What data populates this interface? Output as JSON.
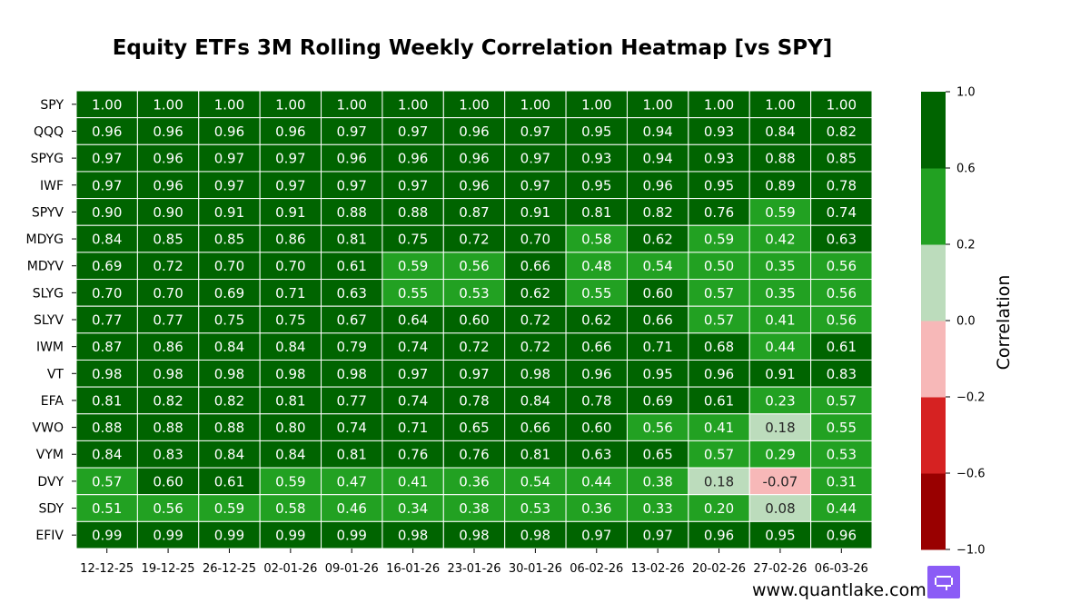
{
  "chart_data": {
    "type": "heatmap",
    "title": "Equity ETFs 3M Rolling Weekly Correlation Heatmap [vs SPY]",
    "rows": [
      "SPY",
      "QQQ",
      "SPYG",
      "IWF",
      "SPYV",
      "MDYG",
      "MDYV",
      "SLYG",
      "SLYV",
      "IWM",
      "VT",
      "EFA",
      "VWO",
      "VYM",
      "DVY",
      "SDY",
      "EFIV"
    ],
    "columns": [
      "12-12-25",
      "19-12-25",
      "26-12-25",
      "02-01-26",
      "09-01-26",
      "16-01-26",
      "23-01-26",
      "30-01-26",
      "06-02-26",
      "13-02-26",
      "20-02-26",
      "27-02-26",
      "06-03-26"
    ],
    "values": [
      [
        1.0,
        1.0,
        1.0,
        1.0,
        1.0,
        1.0,
        1.0,
        1.0,
        1.0,
        1.0,
        1.0,
        1.0,
        1.0
      ],
      [
        0.96,
        0.96,
        0.96,
        0.96,
        0.97,
        0.97,
        0.96,
        0.97,
        0.95,
        0.94,
        0.93,
        0.84,
        0.82
      ],
      [
        0.97,
        0.96,
        0.97,
        0.97,
        0.96,
        0.96,
        0.96,
        0.97,
        0.93,
        0.94,
        0.93,
        0.88,
        0.85
      ],
      [
        0.97,
        0.96,
        0.97,
        0.97,
        0.97,
        0.97,
        0.96,
        0.97,
        0.95,
        0.96,
        0.95,
        0.89,
        0.78
      ],
      [
        0.9,
        0.9,
        0.91,
        0.91,
        0.88,
        0.88,
        0.87,
        0.91,
        0.81,
        0.82,
        0.76,
        0.59,
        0.74
      ],
      [
        0.84,
        0.85,
        0.85,
        0.86,
        0.81,
        0.75,
        0.72,
        0.7,
        0.58,
        0.62,
        0.59,
        0.42,
        0.63
      ],
      [
        0.69,
        0.72,
        0.7,
        0.7,
        0.61,
        0.59,
        0.56,
        0.66,
        0.48,
        0.54,
        0.5,
        0.35,
        0.56
      ],
      [
        0.7,
        0.7,
        0.69,
        0.71,
        0.63,
        0.55,
        0.53,
        0.62,
        0.55,
        0.6,
        0.57,
        0.35,
        0.56
      ],
      [
        0.77,
        0.77,
        0.75,
        0.75,
        0.67,
        0.64,
        0.6,
        0.72,
        0.62,
        0.66,
        0.57,
        0.41,
        0.56
      ],
      [
        0.87,
        0.86,
        0.84,
        0.84,
        0.79,
        0.74,
        0.72,
        0.72,
        0.66,
        0.71,
        0.68,
        0.44,
        0.61
      ],
      [
        0.98,
        0.98,
        0.98,
        0.98,
        0.98,
        0.97,
        0.97,
        0.98,
        0.96,
        0.95,
        0.96,
        0.91,
        0.83
      ],
      [
        0.81,
        0.82,
        0.82,
        0.81,
        0.77,
        0.74,
        0.78,
        0.84,
        0.78,
        0.69,
        0.61,
        0.23,
        0.57
      ],
      [
        0.88,
        0.88,
        0.88,
        0.8,
        0.74,
        0.71,
        0.65,
        0.66,
        0.6,
        0.56,
        0.41,
        0.18,
        0.55
      ],
      [
        0.84,
        0.83,
        0.84,
        0.84,
        0.81,
        0.76,
        0.76,
        0.81,
        0.63,
        0.65,
        0.57,
        0.29,
        0.53
      ],
      [
        0.57,
        0.6,
        0.61,
        0.59,
        0.47,
        0.41,
        0.36,
        0.54,
        0.44,
        0.38,
        0.18,
        -0.07,
        0.31
      ],
      [
        0.51,
        0.56,
        0.59,
        0.58,
        0.46,
        0.34,
        0.38,
        0.53,
        0.36,
        0.33,
        0.2,
        0.08,
        0.44
      ],
      [
        0.99,
        0.99,
        0.99,
        0.99,
        0.99,
        0.98,
        0.98,
        0.98,
        0.97,
        0.97,
        0.96,
        0.95,
        0.96
      ]
    ],
    "value_format": "2 decimals",
    "colorbar": {
      "label": "Correlation",
      "boundaries": [
        -1.0,
        -0.6,
        -0.2,
        0.0,
        0.2,
        0.6,
        1.0
      ],
      "tick_labels": [
        "−1.0",
        "−0.6",
        "−0.2",
        "0.0",
        "0.2",
        "0.6",
        "1.0"
      ],
      "colors": [
        "#990000",
        "#d62222",
        "#f7b8b8",
        "#bcdcbc",
        "#22a122",
        "#006400"
      ],
      "dark_text_colors": [
        false,
        false,
        true,
        true,
        false,
        false
      ]
    }
  },
  "watermark": {
    "text": "www.quantlake.com",
    "logo_color": "#8b5cf6"
  }
}
